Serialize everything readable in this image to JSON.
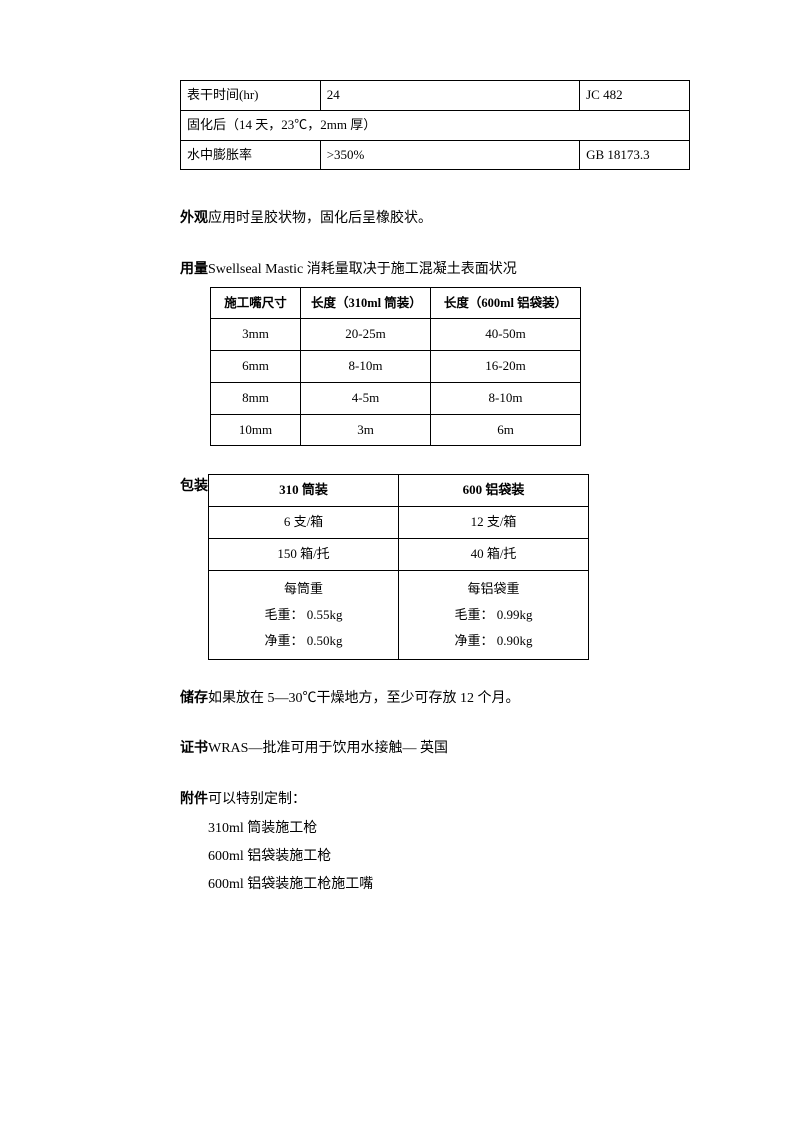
{
  "table1": {
    "rows": [
      {
        "c1": "表干时间(hr)",
        "c2": "24",
        "c3": "JC 482"
      },
      {
        "span": "固化后（14 天，23℃，2mm 厚）"
      },
      {
        "c1": "水中膨胀率",
        "c2": ">350%",
        "c3": "GB 18173.3"
      }
    ]
  },
  "appearance": {
    "label": "外观",
    "text": "应用时呈胶状物，固化后呈橡胶状。"
  },
  "usage": {
    "label": "用量",
    "text": "Swellseal Mastic 消耗量取决于施工混凝土表面状况",
    "table": {
      "headers": [
        "施工嘴尺寸",
        "长度（310ml 筒装）",
        "长度（600ml 铝袋装）"
      ],
      "rows": [
        [
          "3mm",
          "20-25m",
          "40-50m"
        ],
        [
          "6mm",
          "8-10m",
          "16-20m"
        ],
        [
          "8mm",
          "4-5m",
          "8-10m"
        ],
        [
          "10mm",
          "3m",
          "6m"
        ]
      ]
    }
  },
  "packaging": {
    "label": "包装",
    "table": {
      "headers": [
        "310 筒装",
        "600 铝袋装"
      ],
      "rows": [
        [
          "6 支/箱",
          "12 支/箱"
        ],
        [
          "150 箱/托",
          "40 箱/托"
        ]
      ],
      "weight": {
        "left": {
          "title": "每筒重",
          "gross_label": "毛重：",
          "gross": "0.55kg",
          "net_label": "净重：",
          "net": "0.50kg"
        },
        "right": {
          "title": "每铝袋重",
          "gross_label": "毛重：",
          "gross": "0.99kg",
          "net_label": "净重：",
          "net": "0.90kg"
        }
      }
    }
  },
  "storage": {
    "label": "储存",
    "text": "如果放在 5—30℃干燥地方，至少可存放 12 个月。"
  },
  "cert": {
    "label": "证书",
    "text": "WRAS—批准可用于饮用水接触— 英国"
  },
  "attachments": {
    "label": "附件",
    "text": "可以特别定制：",
    "items": [
      "310ml 筒装施工枪",
      "600ml 铝袋装施工枪",
      "600ml 铝袋装施工枪施工嘴"
    ]
  }
}
